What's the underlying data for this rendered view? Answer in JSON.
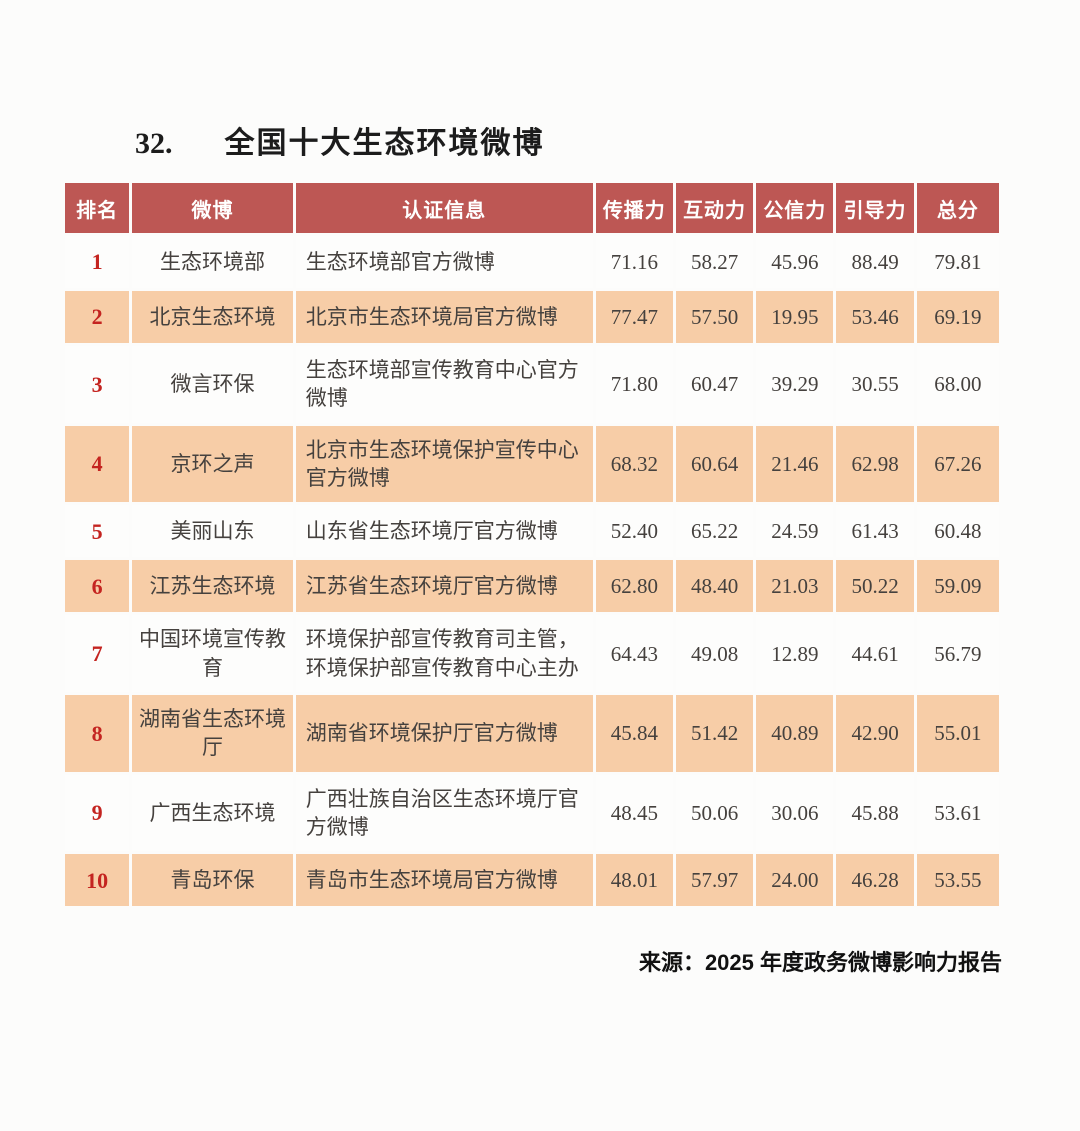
{
  "page": {
    "title_number": "32.",
    "title": "全国十大生态环境微博",
    "source": "来源：2025 年度政务微博影响力报告"
  },
  "colors": {
    "header_bg": "#bd5754",
    "header_text": "#ffffff",
    "rank_red": "#c42420",
    "row_alt_bg": "#f7cda7",
    "row_bg": "#fdfdfc",
    "body_text": "#45413e"
  },
  "table": {
    "columns": [
      "排名",
      "微博",
      "认证信息",
      "传播力",
      "互动力",
      "公信力",
      "引导力",
      "总分"
    ],
    "rows": [
      {
        "rank": "1",
        "weibo": "生态环境部",
        "cert": "生态环境部官方微博",
        "spread": "71.16",
        "interact": "58.27",
        "credit": "45.96",
        "guide": "88.49",
        "total": "79.81"
      },
      {
        "rank": "2",
        "weibo": "北京生态环境",
        "cert": "北京市生态环境局官方微博",
        "spread": "77.47",
        "interact": "57.50",
        "credit": "19.95",
        "guide": "53.46",
        "total": "69.19"
      },
      {
        "rank": "3",
        "weibo": "微言环保",
        "cert": "生态环境部宣传教育中心官方微博",
        "spread": "71.80",
        "interact": "60.47",
        "credit": "39.29",
        "guide": "30.55",
        "total": "68.00"
      },
      {
        "rank": "4",
        "weibo": "京环之声",
        "cert": "北京市生态环境保护宣传中心官方微博",
        "spread": "68.32",
        "interact": "60.64",
        "credit": "21.46",
        "guide": "62.98",
        "total": "67.26"
      },
      {
        "rank": "5",
        "weibo": "美丽山东",
        "cert": "山东省生态环境厅官方微博",
        "spread": "52.40",
        "interact": "65.22",
        "credit": "24.59",
        "guide": "61.43",
        "total": "60.48"
      },
      {
        "rank": "6",
        "weibo": "江苏生态环境",
        "cert": "江苏省生态环境厅官方微博",
        "spread": "62.80",
        "interact": "48.40",
        "credit": "21.03",
        "guide": "50.22",
        "total": "59.09"
      },
      {
        "rank": "7",
        "weibo": "中国环境宣传教育",
        "cert": "环境保护部宣传教育司主管，环境保护部宣传教育中心主办",
        "spread": "64.43",
        "interact": "49.08",
        "credit": "12.89",
        "guide": "44.61",
        "total": "56.79"
      },
      {
        "rank": "8",
        "weibo": "湖南省生态环境厅",
        "cert": "湖南省环境保护厅官方微博",
        "spread": "45.84",
        "interact": "51.42",
        "credit": "40.89",
        "guide": "42.90",
        "total": "55.01"
      },
      {
        "rank": "9",
        "weibo": "广西生态环境",
        "cert": "广西壮族自治区生态环境厅官方微博",
        "spread": "48.45",
        "interact": "50.06",
        "credit": "30.06",
        "guide": "45.88",
        "total": "53.61"
      },
      {
        "rank": "10",
        "weibo": "青岛环保",
        "cert": "青岛市生态环境局官方微博",
        "spread": "48.01",
        "interact": "57.97",
        "credit": "24.00",
        "guide": "46.28",
        "total": "53.55"
      }
    ]
  }
}
